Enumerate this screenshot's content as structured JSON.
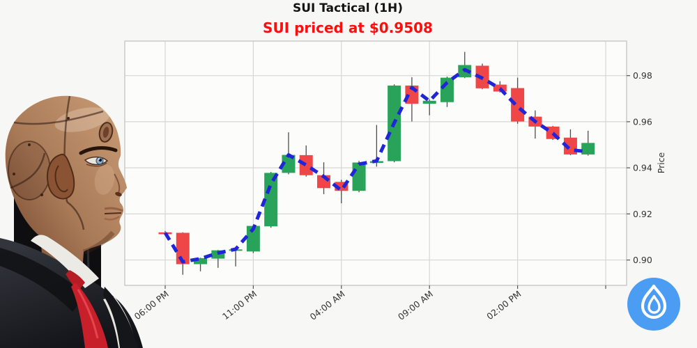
{
  "header": {
    "title": "SUI Tactical (1H)",
    "subtitle": "SUI priced at $0.9508",
    "title_color": "#141414",
    "subtitle_color": "#fa0f0f"
  },
  "chart_data": {
    "type": "candlestick",
    "title": "SUI Tactical (1H)",
    "annotation": "SUI priced at $0.9508",
    "symbol": "SUI",
    "timeframe": "1H",
    "ylabel": "Price",
    "ylim": [
      0.889,
      0.995
    ],
    "grid": true,
    "legend_position": "none",
    "x_tick_labels": [
      "06:00 PM",
      "11:00 PM",
      "04:00 AM",
      "09:00 AM",
      "02:00 PM",
      ""
    ],
    "x_tick_indices": [
      0,
      5,
      10,
      15,
      20,
      25
    ],
    "y_ticks": [
      {
        "value": 0.9,
        "label": "0.90"
      },
      {
        "value": 0.92,
        "label": "0.92"
      },
      {
        "value": 0.94,
        "label": "0.94"
      },
      {
        "value": 0.96,
        "label": "0.96"
      },
      {
        "value": 0.98,
        "label": "0.98"
      }
    ],
    "colors": {
      "up": "#2aa35a",
      "down": "#ef4647",
      "wick": "#4d4d4d",
      "ma": "#2125d8",
      "grid": "#d6d6d6",
      "spine": "#bfbfbf",
      "plot_bg": "#fcfcfb",
      "tick_text": "#333333"
    },
    "candles": [
      {
        "o": 0.912,
        "h": 0.9126,
        "l": 0.9106,
        "c": 0.9112
      },
      {
        "o": 0.9118,
        "h": 0.912,
        "l": 0.8936,
        "c": 0.8982
      },
      {
        "o": 0.8982,
        "h": 0.901,
        "l": 0.8951,
        "c": 0.9008
      },
      {
        "o": 0.9006,
        "h": 0.9044,
        "l": 0.8966,
        "c": 0.9042
      },
      {
        "o": 0.904,
        "h": 0.905,
        "l": 0.8972,
        "c": 0.9046
      },
      {
        "o": 0.9037,
        "h": 0.915,
        "l": 0.903,
        "c": 0.9148
      },
      {
        "o": 0.9146,
        "h": 0.9382,
        "l": 0.914,
        "c": 0.9378
      },
      {
        "o": 0.9378,
        "h": 0.9554,
        "l": 0.9372,
        "c": 0.9456
      },
      {
        "o": 0.9455,
        "h": 0.9497,
        "l": 0.9362,
        "c": 0.9368
      },
      {
        "o": 0.9368,
        "h": 0.9424,
        "l": 0.9286,
        "c": 0.9312
      },
      {
        "o": 0.9339,
        "h": 0.9348,
        "l": 0.9246,
        "c": 0.93
      },
      {
        "o": 0.93,
        "h": 0.943,
        "l": 0.9294,
        "c": 0.9423
      },
      {
        "o": 0.9421,
        "h": 0.9586,
        "l": 0.9405,
        "c": 0.9429
      },
      {
        "o": 0.9429,
        "h": 0.9762,
        "l": 0.9424,
        "c": 0.9757
      },
      {
        "o": 0.9757,
        "h": 0.9793,
        "l": 0.9601,
        "c": 0.9678
      },
      {
        "o": 0.9678,
        "h": 0.9697,
        "l": 0.9628,
        "c": 0.9691
      },
      {
        "o": 0.9685,
        "h": 0.9796,
        "l": 0.9664,
        "c": 0.9791
      },
      {
        "o": 0.9793,
        "h": 0.9903,
        "l": 0.9789,
        "c": 0.9846
      },
      {
        "o": 0.9843,
        "h": 0.9852,
        "l": 0.9741,
        "c": 0.9745
      },
      {
        "o": 0.9761,
        "h": 0.9776,
        "l": 0.9727,
        "c": 0.9731
      },
      {
        "o": 0.9746,
        "h": 0.9791,
        "l": 0.9591,
        "c": 0.9601
      },
      {
        "o": 0.9622,
        "h": 0.9649,
        "l": 0.9527,
        "c": 0.9579
      },
      {
        "o": 0.9579,
        "h": 0.9582,
        "l": 0.9521,
        "c": 0.9525
      },
      {
        "o": 0.9531,
        "h": 0.9567,
        "l": 0.9455,
        "c": 0.9458
      },
      {
        "o": 0.9458,
        "h": 0.9561,
        "l": 0.9453,
        "c": 0.9508
      }
    ],
    "ma_line": [
      0.9118,
      0.8992,
      0.9006,
      0.903,
      0.9047,
      0.9135,
      0.933,
      0.9456,
      0.9412,
      0.9362,
      0.9302,
      0.9416,
      0.943,
      0.9595,
      0.9748,
      0.969,
      0.977,
      0.9826,
      0.9789,
      0.9744,
      0.9665,
      0.9601,
      0.955,
      0.9478,
      0.947
    ]
  },
  "logo": {
    "icon": "sui-water-drop",
    "background": "#4a9df2",
    "glyph_color": "#ffffff"
  }
}
